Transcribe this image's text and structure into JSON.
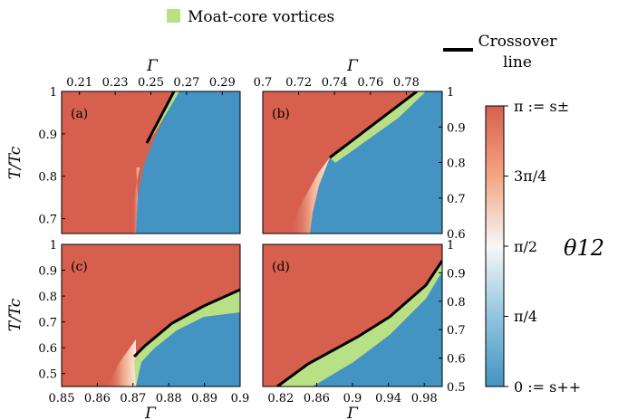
{
  "legend": {
    "moat": "Moat-core vortices",
    "crossover_line1": "Crossover",
    "crossover_line2": "line"
  },
  "colorbar": {
    "symbol": "θ12",
    "ticks": [
      "π := s±",
      "3π/4",
      "π/2",
      "π/4",
      "0 := s++"
    ],
    "colors": {
      "pi": "#d6604d",
      "mid": "#f7f7f7",
      "zero": "#4393c3",
      "moat": "#b8e186"
    }
  },
  "chart_data": [
    {
      "type": "heatmap",
      "panel": "(a)",
      "xlabel": "Γ",
      "ylabel": "T/Tc",
      "xlim": [
        0.2,
        0.3
      ],
      "ylim": [
        0.665,
        1.0
      ],
      "xticks": [
        0.21,
        0.23,
        0.25,
        0.27,
        0.29
      ],
      "yticks": [
        0.7,
        0.8,
        0.9,
        1
      ],
      "phase_boundary": [
        [
          0.2335,
          0.665
        ],
        [
          0.2345,
          0.75
        ],
        [
          0.2375,
          0.82
        ],
        [
          0.2425,
          0.885
        ]
      ],
      "crossover_line": [
        [
          0.2425,
          0.885
        ],
        [
          0.2565,
          1.0
        ]
      ],
      "moat_edge": [
        [
          0.2425,
          0.885
        ],
        [
          0.258,
          1.0
        ],
        [
          0.2545,
          0.975
        ],
        [
          0.244,
          0.89
        ]
      ]
    },
    {
      "type": "heatmap",
      "panel": "(b)",
      "xlabel": "Γ",
      "ylabel": "",
      "xlim": [
        0.7,
        0.8
      ],
      "ylim": [
        0.6,
        1.0
      ],
      "xticks": [
        0.7,
        0.72,
        0.74,
        0.76,
        0.78
      ],
      "yticks": [
        0.6,
        0.7,
        0.8,
        0.9,
        1
      ],
      "phase_boundary": [
        [
          0.7345,
          0.6
        ],
        [
          0.7335,
          0.68
        ],
        [
          0.7385,
          0.75
        ],
        [
          0.7425,
          0.81
        ]
      ],
      "crossover_line": [
        [
          0.7425,
          0.81
        ],
        [
          0.7885,
          1.0
        ]
      ],
      "moat_edge": [
        [
          0.7425,
          0.81
        ],
        [
          0.7885,
          1.0
        ],
        [
          0.7935,
          1.0
        ],
        [
          0.78,
          0.93
        ],
        [
          0.745,
          0.8
        ]
      ]
    },
    {
      "type": "heatmap",
      "panel": "(c)",
      "xlabel": "Γ",
      "ylabel": "T/Tc",
      "xlim": [
        0.85,
        0.9
      ],
      "ylim": [
        0.45,
        1.0
      ],
      "xticks": [
        0.85,
        0.86,
        0.87,
        0.88,
        0.89,
        0.9
      ],
      "yticks": [
        0.5,
        0.6,
        0.7,
        0.8,
        0.9,
        1
      ],
      "phase_boundary": [
        [
          0.8675,
          0.45
        ],
        [
          0.8688,
          0.53
        ],
        [
          0.8705,
          0.6
        ]
      ],
      "crossover_line": [
        [
          0.8709,
          0.565
        ],
        [
          0.875,
          0.62
        ],
        [
          0.885,
          0.7
        ],
        [
          0.895,
          0.79
        ],
        [
          0.9,
          0.835
        ]
      ],
      "moat_edge": [
        [
          0.8709,
          0.45
        ],
        [
          0.876,
          0.55
        ],
        [
          0.885,
          0.62
        ],
        [
          0.895,
          0.7
        ],
        [
          0.9,
          0.725
        ]
      ]
    },
    {
      "type": "heatmap",
      "panel": "(d)",
      "xlabel": "Γ",
      "ylabel": "",
      "xlim": [
        0.8,
        1.0
      ],
      "ylim": [
        0.5,
        1.0
      ],
      "xticks": [
        0.82,
        0.86,
        0.9,
        0.94,
        0.98
      ],
      "yticks": [
        0.5,
        0.6,
        0.7,
        0.8,
        0.9,
        1
      ],
      "crossover_line": [
        [
          0.807,
          0.5
        ],
        [
          0.85,
          0.58
        ],
        [
          0.9,
          0.68
        ],
        [
          0.95,
          0.79
        ],
        [
          0.999,
          0.94
        ]
      ],
      "moat_edge": [
        [
          0.845,
          0.5
        ],
        [
          0.9,
          0.6
        ],
        [
          0.95,
          0.74
        ],
        [
          0.999,
          0.89
        ]
      ]
    }
  ]
}
